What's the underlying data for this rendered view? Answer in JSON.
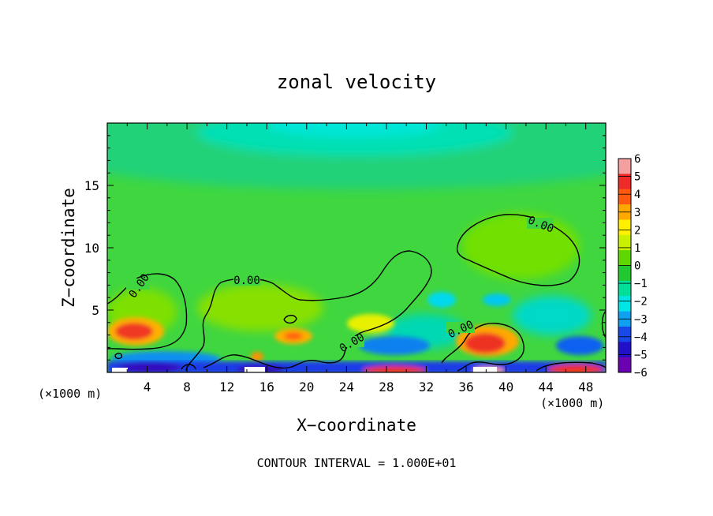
{
  "chart_data": {
    "type": "heatmap",
    "title": "zonal velocity",
    "xlabel": "X−coordinate",
    "ylabel": "Z−coordinate",
    "x_unit_left": "(×1000 m)",
    "x_unit_right": "(×1000 m)",
    "footer": "CONTOUR INTERVAL = 1.000E+01",
    "xlim": [
      0,
      50
    ],
    "ylim": [
      0,
      20
    ],
    "x_ticks": [
      "4",
      "8",
      "12",
      "16",
      "20",
      "24",
      "28",
      "32",
      "36",
      "40",
      "44",
      "48"
    ],
    "y_ticks": [
      "5",
      "10",
      "15"
    ],
    "contour_labels": [
      "0.00",
      "0.00",
      "0.00",
      "0.00",
      "0.00"
    ],
    "colorbar": {
      "range": [
        -6,
        6
      ],
      "labels": [
        "6",
        "5",
        "4",
        "3",
        "2",
        "1",
        "0",
        "−1",
        "−2",
        "−3",
        "−4",
        "−5",
        "−6"
      ],
      "colors": [
        "#f4a0a0",
        "#ee2a2a",
        "#ff5a10",
        "#ffa800",
        "#fff000",
        "#c8f000",
        "#5ed800",
        "#22c830",
        "#00e09a",
        "#00e6e6",
        "#10a0f0",
        "#1848e8",
        "#2210c8",
        "#6a00b0"
      ]
    }
  }
}
